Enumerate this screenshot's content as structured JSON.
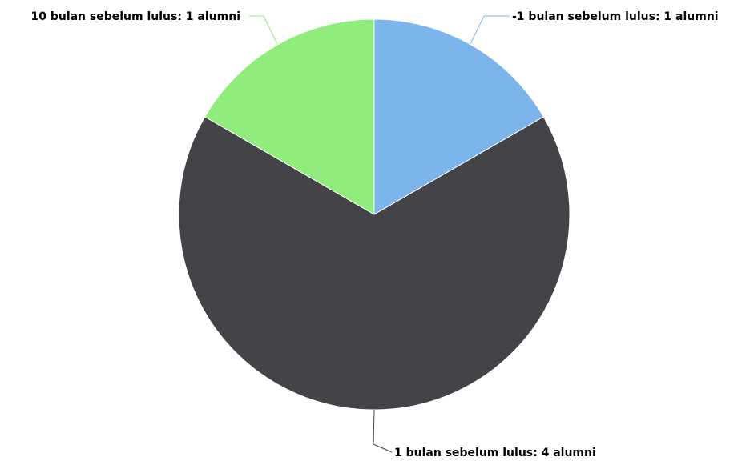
{
  "chart_data": {
    "type": "pie",
    "title": "",
    "unit": "alumni",
    "slices": [
      {
        "label": "-1 bulan sebelum lulus",
        "value": 1,
        "data_label": "-1 bulan sebelum lulus: 1 alumni",
        "color": "#7cb5ec"
      },
      {
        "label": "1 bulan sebelum lulus",
        "value": 4,
        "data_label": "1 bulan sebelum lulus: 4 alumni",
        "color": "#434348"
      },
      {
        "label": "10 bulan sebelum lulus",
        "value": 1,
        "data_label": "10 bulan sebelum lulus: 1 alumni",
        "color": "#90ed7d"
      }
    ],
    "start_angle_deg": 0,
    "direction": "clockwise",
    "legend": "none",
    "slice_border_color": "#ffffff"
  }
}
